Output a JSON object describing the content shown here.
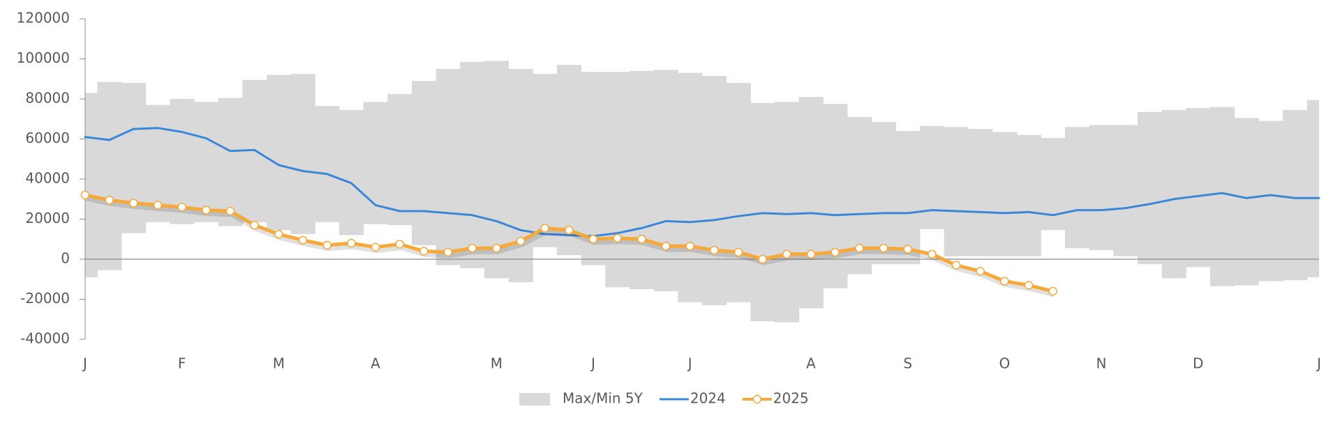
{
  "chart_data": {
    "type": "line",
    "categories": [
      "J",
      null,
      null,
      null,
      "F",
      null,
      null,
      null,
      "M",
      null,
      null,
      null,
      "A",
      null,
      null,
      null,
      null,
      "M",
      null,
      null,
      null,
      "J",
      null,
      null,
      null,
      "J",
      null,
      null,
      null,
      null,
      "A",
      null,
      null,
      null,
      "S",
      null,
      null,
      null,
      "O",
      null,
      null,
      null,
      "N",
      null,
      null,
      null,
      "D",
      null,
      null,
      null,
      null,
      "J"
    ],
    "ylim": [
      -40000,
      120000
    ],
    "yticks": [
      -40000,
      -20000,
      0,
      20000,
      40000,
      60000,
      80000,
      100000,
      120000
    ],
    "series": [
      {
        "name": "Max/Min 5Y",
        "type": "range",
        "color": "#d9d9d9",
        "max": [
          83000,
          88500,
          88000,
          77000,
          80000,
          78500,
          80500,
          89500,
          92000,
          92500,
          76500,
          74500,
          78500,
          82500,
          89000,
          95000,
          98500,
          99000,
          95000,
          92500,
          97000,
          93500,
          93500,
          94000,
          94500,
          93000,
          91500,
          88000,
          78000,
          78500,
          81000,
          77500,
          71000,
          68500,
          64000,
          66500,
          66000,
          65000,
          63500,
          62000,
          60500,
          66000,
          67000,
          67000,
          73500,
          74500,
          75500,
          76000,
          70500,
          69000,
          74500,
          79500
        ],
        "min": [
          -9000,
          -5500,
          13000,
          18500,
          17500,
          18500,
          16500,
          18500,
          14500,
          12500,
          18500,
          12000,
          17500,
          17000,
          7000,
          -3000,
          -4500,
          -9500,
          -11500,
          6000,
          2000,
          -3000,
          -14000,
          -15000,
          -16000,
          -21500,
          -23000,
          -21500,
          -31000,
          -31500,
          -24500,
          -14500,
          -7500,
          -2500,
          -2500,
          15000,
          1500,
          1500,
          1500,
          1500,
          14500,
          5500,
          4500,
          1500,
          -2500,
          -9500,
          -4000,
          -13500,
          -13000,
          -11000,
          -10500,
          -9000
        ]
      },
      {
        "name": "2024",
        "type": "line",
        "color": "#3a86d8",
        "values": [
          61000,
          59500,
          65000,
          65500,
          63500,
          60400,
          54000,
          54500,
          47000,
          44000,
          42500,
          38000,
          27000,
          24000,
          24000,
          23000,
          22000,
          19000,
          14500,
          12500,
          12000,
          11500,
          13000,
          15500,
          19000,
          18500,
          19500,
          21500,
          23000,
          22500,
          23000,
          22000,
          22500,
          23000,
          23000,
          24500,
          24000,
          23500,
          23000,
          23500,
          22000,
          24500,
          24500,
          25500,
          27500,
          30000,
          31500,
          33000,
          30500,
          32000,
          30500,
          30500
        ]
      },
      {
        "name": "2025",
        "type": "marker-line",
        "color": "#f4a93a",
        "values": [
          32000,
          29500,
          28000,
          27000,
          26000,
          24500,
          24000,
          17000,
          12500,
          9500,
          7000,
          8000,
          6000,
          7500,
          4000,
          3500,
          5500,
          5500,
          9000,
          15500,
          14500,
          10000,
          10500,
          10000,
          6500,
          6500,
          4500,
          3500,
          0,
          2500,
          2500,
          3500,
          5500,
          5500,
          5000,
          2500,
          -3000,
          -6000,
          -11000,
          -13000,
          -16000,
          null,
          null,
          null,
          null,
          null,
          null,
          null,
          null,
          null,
          null,
          null
        ]
      }
    ]
  }
}
